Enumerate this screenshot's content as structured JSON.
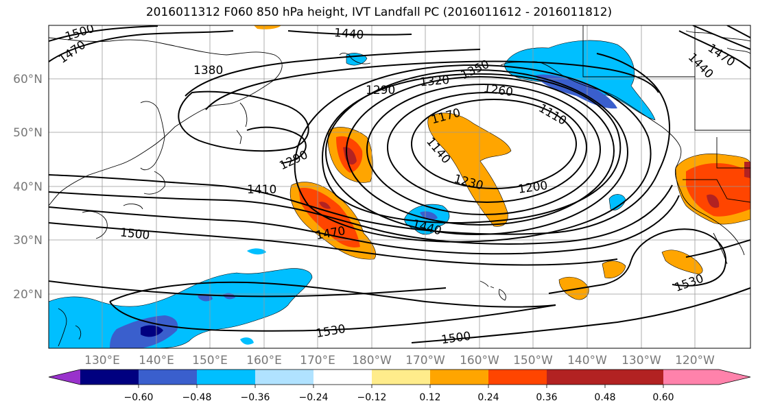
{
  "title": "2016011312 F060 850 hPa height, IVT Landfall PC (2016011612 - 2016011812)",
  "map": {
    "lon_labels": [
      "130°E",
      "140°E",
      "150°E",
      "160°E",
      "170°E",
      "180°W",
      "170°W",
      "160°W",
      "150°W",
      "140°W",
      "130°W",
      "120°W"
    ],
    "lat_labels": [
      "60°N",
      "50°N",
      "40°N",
      "30°N",
      "20°N"
    ],
    "contour_labels": [
      "1500",
      "1470",
      "1440",
      "1380",
      "1350",
      "1320",
      "1290",
      "1260",
      "1170",
      "1110",
      "1290",
      "1140",
      "1410",
      "1230",
      "1200",
      "1470",
      "1440",
      "1500",
      "1530",
      "1530",
      "1500",
      "1470",
      "1440"
    ]
  },
  "colorbar": {
    "ticks": [
      "−0.60",
      "−0.48",
      "−0.36",
      "−0.24",
      "−0.12",
      "0.12",
      "0.24",
      "0.36",
      "0.48",
      "0.60"
    ],
    "colors": [
      "#9932cc",
      "#000080",
      "#3a5fcd",
      "#00bfff",
      "#b0e2ff",
      "#ffffff",
      "#ffec8b",
      "#ffa500",
      "#ff4500",
      "#b22222",
      "#ff82ab"
    ]
  }
}
